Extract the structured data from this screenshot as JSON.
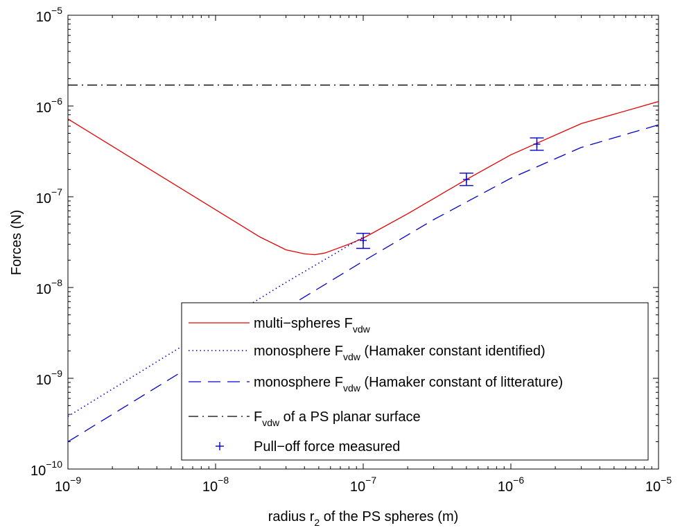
{
  "chart_data": {
    "type": "line",
    "xlabel": {
      "main": "radius r",
      "sub": "2",
      "rest": " of the PS spheres (m)"
    },
    "ylabel": "Forces (N)",
    "xscale": "log",
    "yscale": "log",
    "xlim": [
      1e-09,
      1e-05
    ],
    "ylim": [
      1e-10,
      1e-05
    ],
    "xticks": [
      {
        "value": 1e-09,
        "base": "10",
        "exp": "−9"
      },
      {
        "value": 1e-08,
        "base": "10",
        "exp": "−8"
      },
      {
        "value": 1e-07,
        "base": "10",
        "exp": "−7"
      },
      {
        "value": 1e-06,
        "base": "10",
        "exp": "−6"
      },
      {
        "value": 1e-05,
        "base": "10",
        "exp": "−5"
      }
    ],
    "yticks": [
      {
        "value": 1e-10,
        "base": "10",
        "exp": "−10"
      },
      {
        "value": 1e-09,
        "base": "10",
        "exp": "−9"
      },
      {
        "value": 1e-08,
        "base": "10",
        "exp": "−8"
      },
      {
        "value": 1e-07,
        "base": "10",
        "exp": "−7"
      },
      {
        "value": 1e-06,
        "base": "10",
        "exp": "−6"
      },
      {
        "value": 1e-05,
        "base": "10",
        "exp": "−5"
      }
    ],
    "grid": false,
    "legend_position": "bottom-right",
    "series": [
      {
        "name": "multi−spheres F",
        "name_sub": "vdw",
        "name_rest": "",
        "color": "#e60000",
        "style": "solid",
        "x": [
          1e-09,
          3e-09,
          1e-08,
          2e-08,
          3e-08,
          4e-08,
          4.7e-08,
          5.5e-08,
          6.5e-08,
          8e-08,
          1e-07,
          2e-07,
          5e-07,
          1e-06,
          3e-06,
          1e-05
        ],
        "y": [
          7.2e-07,
          2.4e-07,
          7.2e-08,
          3.6e-08,
          2.6e-08,
          2.35e-08,
          2.3e-08,
          2.4e-08,
          2.65e-08,
          3e-08,
          3.5e-08,
          6.5e-08,
          1.55e-07,
          2.9e-07,
          6.4e-07,
          1.12e-06
        ]
      },
      {
        "name": "monosphere F",
        "name_sub": "vdw",
        "name_rest": " (Hamaker constant identified)",
        "color": "#0000cc",
        "style": "dotted",
        "x": [
          1e-09,
          1e-08,
          3e-08,
          1e-07
        ],
        "y": [
          3.8e-10,
          3.8e-09,
          1.14e-08,
          3.6e-08
        ]
      },
      {
        "name": "monosphere F",
        "name_sub": "vdw",
        "name_rest": " (Hamaker constant of litterature)",
        "color": "#0000cc",
        "style": "dashed",
        "x": [
          1e-09,
          1e-08,
          1e-07,
          3e-07,
          1e-06,
          3e-06,
          1e-05
        ],
        "y": [
          2e-10,
          2e-09,
          1.95e-08,
          5.6e-08,
          1.6e-07,
          3.5e-07,
          6.2e-07
        ]
      },
      {
        "name": "F",
        "name_sub": "vdw",
        "name_rest": " of a PS planar surface",
        "color": "#000000",
        "style": "dashdot",
        "x": [
          1e-09,
          1e-05
        ],
        "y": [
          1.7e-06,
          1.7e-06
        ]
      },
      {
        "name": "Pull−off force measured",
        "name_sub": "",
        "name_rest": "",
        "color": "#0000cc",
        "style": "marker",
        "x": [
          1e-07,
          5e-07,
          1.5e-06
        ],
        "y": [
          3.3e-08,
          1.55e-07,
          3.8e-07
        ],
        "err_low": [
          2.7e-08,
          1.33e-07,
          3.25e-07
        ],
        "err_high": [
          3.95e-08,
          1.82e-07,
          4.45e-07
        ]
      }
    ]
  }
}
